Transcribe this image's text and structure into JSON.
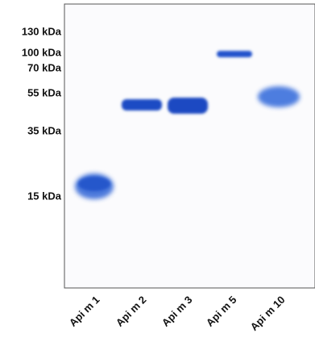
{
  "markers": [
    "130 kDa",
    "100 kDa",
    "70 kDa",
    "55 kDa",
    "35 kDa",
    "15 kDa"
  ],
  "lanes": [
    "Api m 1",
    "Api m 2",
    "Api m 3",
    "Api m 5",
    "Api m 10"
  ]
}
